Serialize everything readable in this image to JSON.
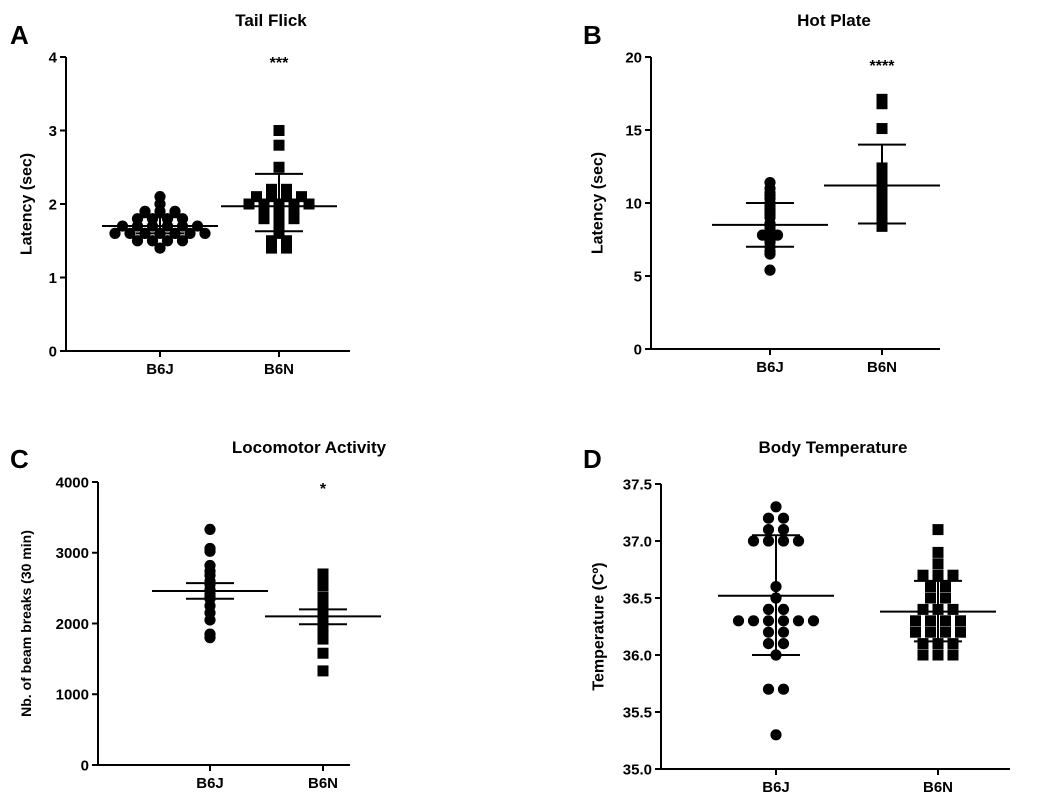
{
  "chart_data": [
    {
      "panel": "A",
      "type": "scatter",
      "title": "Tail Flick",
      "ylabel": "Latency (sec)",
      "xlabel": "",
      "categories": [
        "B6J",
        "B6N"
      ],
      "ylim": [
        0,
        4
      ],
      "yticks": [
        "0",
        "1",
        "2",
        "3",
        "4"
      ],
      "grid": false,
      "marker_shapes": [
        "circle",
        "square"
      ],
      "significance": "***",
      "series": [
        {
          "values": [
            1.4,
            1.5,
            1.5,
            1.5,
            1.5,
            1.6,
            1.6,
            1.6,
            1.6,
            1.6,
            1.6,
            1.6,
            1.7,
            1.7,
            1.7,
            1.7,
            1.7,
            1.7,
            1.8,
            1.8,
            1.8,
            1.8,
            1.9,
            1.9,
            1.9,
            2.0,
            2.1
          ],
          "mean": 1.7,
          "error": [
            1.6,
            1.82
          ]
        },
        {
          "values": [
            1.4,
            1.4,
            1.5,
            1.5,
            1.6,
            1.7,
            1.8,
            1.8,
            1.8,
            1.9,
            1.9,
            1.9,
            2.0,
            2.0,
            2.0,
            2.0,
            2.0,
            2.1,
            2.1,
            2.1,
            2.1,
            2.2,
            2.2,
            2.5,
            2.8,
            3.0
          ],
          "mean": 1.97,
          "error": [
            1.63,
            2.41
          ]
        }
      ]
    },
    {
      "panel": "B",
      "type": "scatter",
      "title": "Hot Plate",
      "ylabel": "Latency (sec)",
      "xlabel": "",
      "categories": [
        "B6J",
        "B6N"
      ],
      "ylim": [
        0,
        20
      ],
      "yticks": [
        "0",
        "5",
        "10",
        "15",
        "20"
      ],
      "grid": false,
      "marker_shapes": [
        "circle",
        "square"
      ],
      "significance": "****",
      "series": [
        {
          "values": [
            5.4,
            6.5,
            6.7,
            7.0,
            7.3,
            7.4,
            7.5,
            7.7,
            7.8,
            7.8,
            8.0,
            8.2,
            8.4,
            8.5,
            8.6,
            9.0,
            9.2,
            9.4,
            9.6,
            9.8,
            10.0,
            10.3,
            10.5,
            10.7,
            11.0,
            11.4
          ],
          "mean": 8.5,
          "error": [
            7.0,
            10.0
          ]
        },
        {
          "values": [
            8.4,
            8.6,
            8.8,
            9.0,
            9.3,
            9.5,
            9.8,
            10.2,
            10.5,
            10.9,
            11.0,
            11.2,
            11.3,
            11.5,
            11.7,
            12.0,
            12.2,
            12.4,
            15.1,
            16.8,
            17.0,
            17.1
          ],
          "mean": 11.2,
          "error": [
            8.6,
            14.0
          ]
        }
      ]
    },
    {
      "panel": "C",
      "type": "scatter",
      "title": "Locomotor Activity",
      "ylabel": "Nb. of beam breaks (30 min)",
      "xlabel": "",
      "categories": [
        "B6J",
        "B6N"
      ],
      "ylim": [
        0,
        4000
      ],
      "yticks": [
        "0",
        "1000",
        "2000",
        "3000",
        "4000"
      ],
      "grid": false,
      "marker_shapes": [
        "circle",
        "square"
      ],
      "significance": "*",
      "series": [
        {
          "values": [
            1800,
            1850,
            2050,
            2150,
            2250,
            2350,
            2380,
            2420,
            2480,
            2550,
            2600,
            2680,
            2740,
            2820,
            3020,
            3060,
            3330
          ],
          "mean": 2460,
          "error": [
            2350,
            2570
          ]
        },
        {
          "values": [
            1330,
            1580,
            1780,
            1790,
            1860,
            1960,
            2050,
            2080,
            2150,
            2180,
            2250,
            2290,
            2370,
            2530,
            2640,
            2700
          ],
          "mean": 2100,
          "error": [
            1990,
            2200
          ]
        }
      ]
    },
    {
      "panel": "D",
      "type": "scatter",
      "title": "Body Temperature",
      "ylabel": "Temperature (Cº)",
      "xlabel": "",
      "categories": [
        "B6J",
        "B6N"
      ],
      "ylim": [
        35.0,
        37.5
      ],
      "yticks": [
        "35.0",
        "35.5",
        "36.0",
        "36.5",
        "37.0",
        "37.5"
      ],
      "grid": false,
      "marker_shapes": [
        "circle",
        "square"
      ],
      "significance": "",
      "series": [
        {
          "values": [
            35.3,
            35.7,
            35.7,
            36.0,
            36.1,
            36.1,
            36.2,
            36.2,
            36.3,
            36.3,
            36.3,
            36.3,
            36.3,
            36.3,
            36.4,
            36.4,
            36.5,
            36.6,
            37.0,
            37.0,
            37.0,
            37.0,
            37.1,
            37.1,
            37.2,
            37.2,
            37.3
          ],
          "mean": 36.52,
          "error": [
            36.0,
            37.05
          ]
        },
        {
          "values": [
            36.0,
            36.0,
            36.0,
            36.1,
            36.1,
            36.1,
            36.2,
            36.2,
            36.2,
            36.2,
            36.3,
            36.3,
            36.3,
            36.3,
            36.4,
            36.4,
            36.4,
            36.5,
            36.5,
            36.6,
            36.6,
            36.7,
            36.7,
            36.7,
            36.8,
            36.9,
            37.1
          ],
          "mean": 36.38,
          "error": [
            36.12,
            36.65
          ]
        }
      ]
    }
  ]
}
